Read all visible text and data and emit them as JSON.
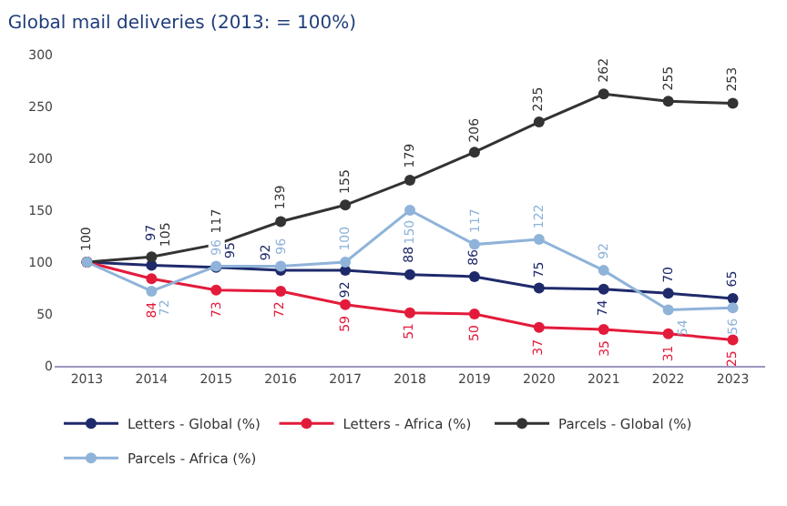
{
  "chart_data": {
    "type": "line",
    "title": "Global mail deliveries (2013: = 100%)",
    "categories": [
      "2013",
      "2014",
      "2015",
      "2016",
      "2017",
      "2018",
      "2019",
      "2020",
      "2021",
      "2022",
      "2023"
    ],
    "series": [
      {
        "name": "Letters - Global (%)",
        "color": "#1f2a6b",
        "values": [
          100,
          97,
          95,
          92,
          92,
          88,
          86,
          75,
          74,
          70,
          65
        ],
        "value_labels": [
          null,
          "97",
          "95",
          "92",
          "92",
          "88",
          "86",
          "75",
          "74",
          "70",
          "65"
        ]
      },
      {
        "name": "Letters - Africa (%)",
        "color": "#e31b3b",
        "values": [
          100,
          84,
          73,
          72,
          59,
          51,
          50,
          37,
          35,
          31,
          25
        ],
        "value_labels": [
          null,
          "84",
          "73",
          "72",
          "59",
          "51",
          "50",
          "37",
          "35",
          "31",
          "25"
        ]
      },
      {
        "name": "Parcels - Global (%)",
        "color": "#333333",
        "values": [
          100,
          105,
          117,
          139,
          155,
          179,
          206,
          235,
          262,
          255,
          253
        ],
        "value_labels": [
          "100",
          "105",
          "117",
          "139",
          "155",
          "179",
          "206",
          "235",
          "262",
          "255",
          "253"
        ]
      },
      {
        "name": "Parcels - Africa (%)",
        "color": "#8fb3d9",
        "values": [
          100,
          72,
          96,
          96,
          100,
          150,
          117,
          122,
          92,
          54,
          56
        ],
        "value_labels": [
          null,
          "72",
          "96",
          "96",
          "100",
          "150",
          "117",
          "122",
          "92",
          "54",
          "56"
        ]
      }
    ],
    "ylim": [
      0,
      300
    ],
    "yticks": [
      0,
      50,
      100,
      150,
      200,
      250,
      300
    ],
    "grid": false,
    "legend": "bottom",
    "marker": "circle",
    "line_style": "solid"
  }
}
